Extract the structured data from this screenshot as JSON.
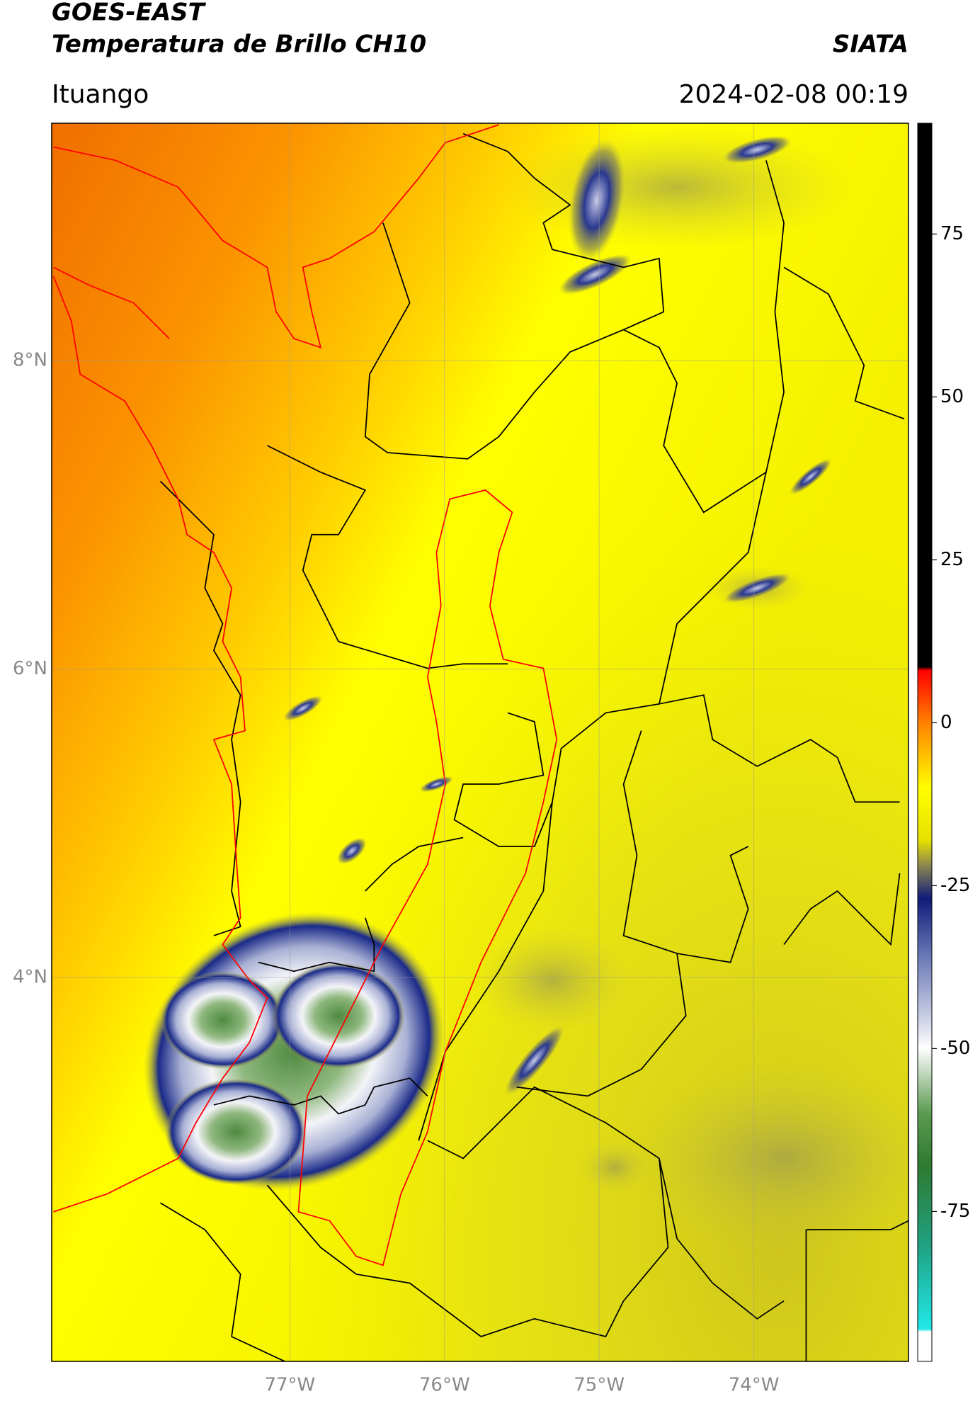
{
  "header": {
    "title": "GOES-EAST",
    "subtitle": "Temperatura de Brillo CH10",
    "source": "SIATA",
    "location": "Ituango",
    "datetime": "2024-02-08 00:19"
  },
  "map": {
    "xlim": [
      -78.54,
      -73.0
    ],
    "ylim": [
      1.51,
      9.54
    ],
    "xticks": [
      {
        "value": -77,
        "label": "77°W"
      },
      {
        "value": -76,
        "label": "76°W"
      },
      {
        "value": -75,
        "label": "75°W"
      },
      {
        "value": -74,
        "label": "74°W"
      }
    ],
    "yticks": [
      {
        "value": 4,
        "label": "4°N"
      },
      {
        "value": 6,
        "label": "6°N"
      },
      {
        "value": 8,
        "label": "8°N"
      }
    ],
    "grid": true
  },
  "colorbar": {
    "lim": [
      -98,
      92
    ],
    "ticks": [
      -75,
      -50,
      -25,
      0,
      25,
      50,
      75
    ]
  }
}
